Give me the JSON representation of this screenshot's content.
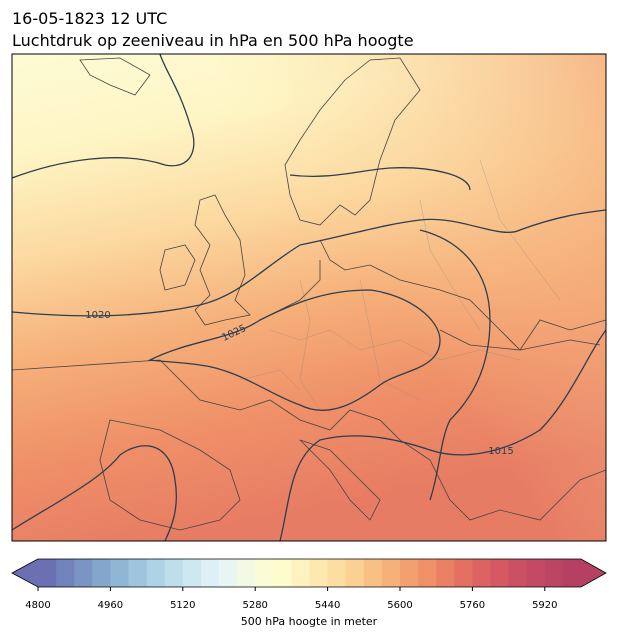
{
  "header": {
    "date": "16-05-1823 12 UTC",
    "title": "Luchtdruk op zeeniveau in hPa en 500 hPa hoogte"
  },
  "map": {
    "contour_labels": [
      "1020",
      "1025",
      "1015"
    ]
  },
  "colorbar": {
    "label": "500 hPa hoogte in meter",
    "lim": [
      4800,
      6000
    ],
    "ticks": [
      4800,
      4960,
      5120,
      5280,
      5440,
      5600,
      5760,
      5920
    ],
    "colors": [
      "#6b70b2",
      "#7282bb",
      "#7a95c4",
      "#84a6cd",
      "#90b6d5",
      "#9ec5dd",
      "#aed3e6",
      "#bedeec",
      "#cde8f1",
      "#dcf0f5",
      "#e8f5f2",
      "#f2f9e4",
      "#fafcd6",
      "#fefbcc",
      "#fef3be",
      "#fde9b0",
      "#fcdea2",
      "#fbd094",
      "#f9c086",
      "#f6b07a",
      "#f3a070",
      "#ef9068",
      "#ea8064",
      "#e47062",
      "#dd6362",
      "#d55862",
      "#cc5063",
      "#c44a63",
      "#bb4562",
      "#b54062"
    ]
  }
}
